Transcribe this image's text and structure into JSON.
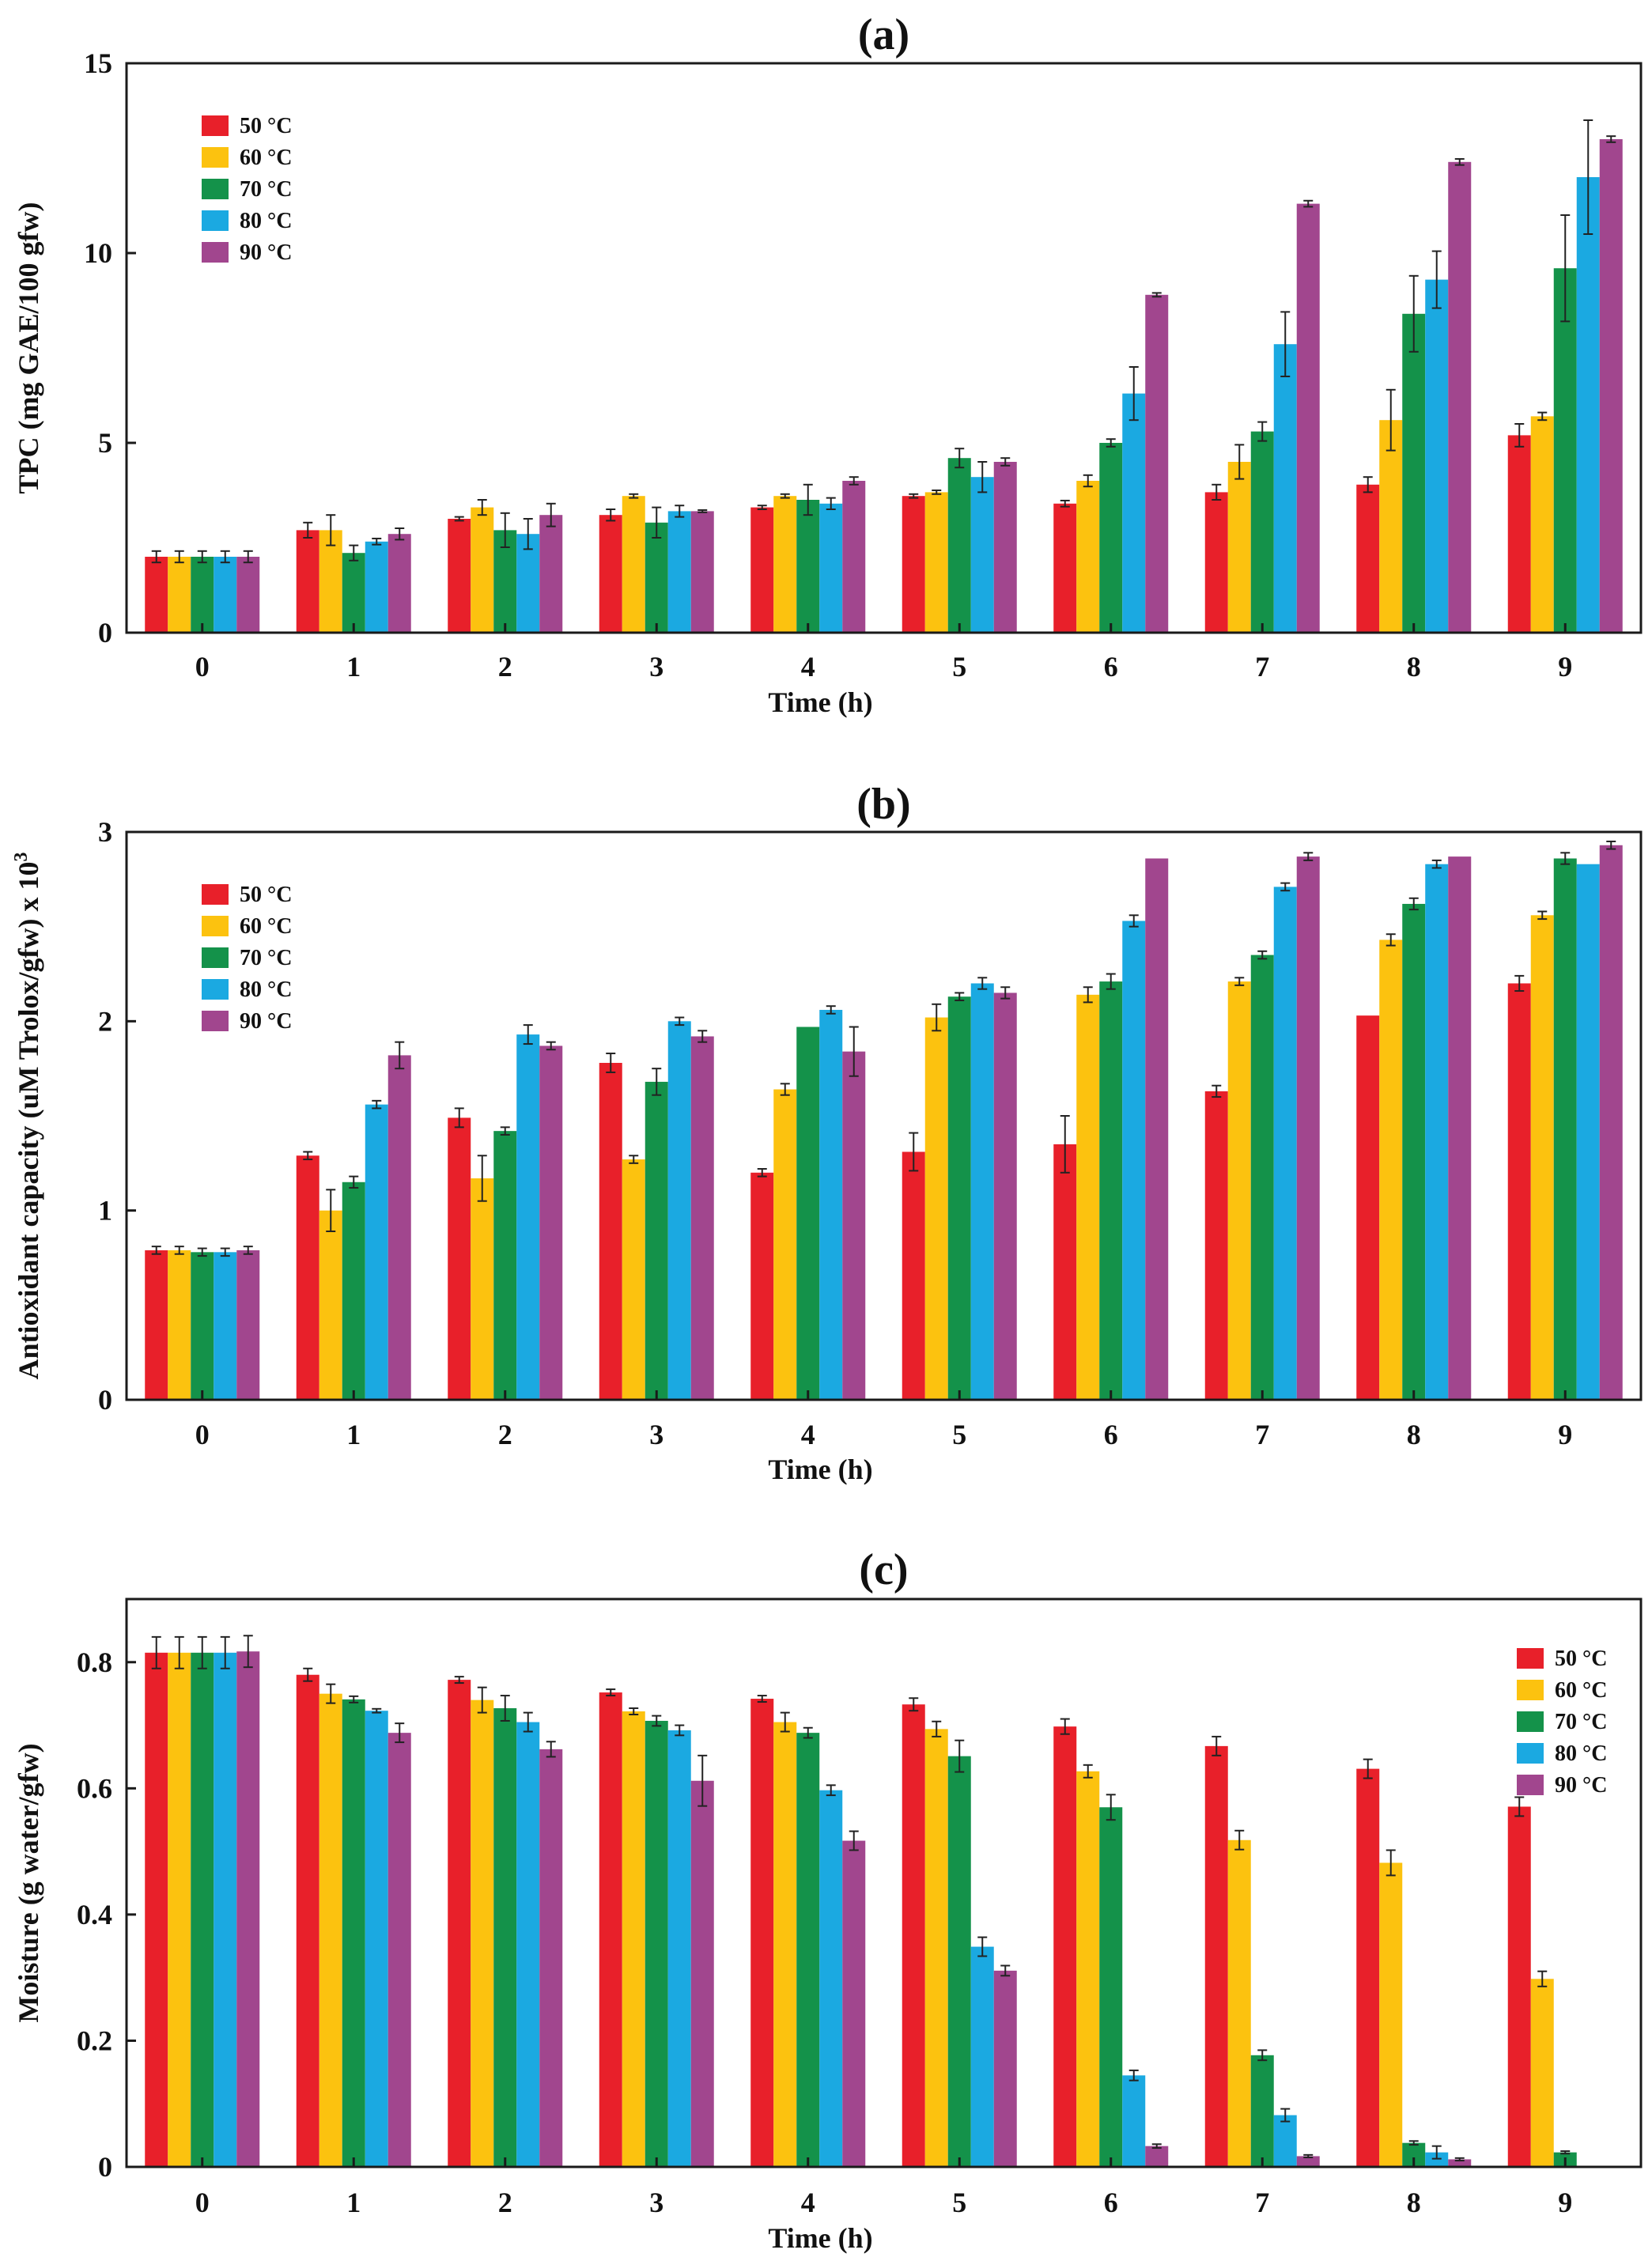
{
  "colors": {
    "50 °C": "#e8202a",
    "60 °C": "#fcc20f",
    "70 °C": "#14924a",
    "80 °C": "#1ba9e1",
    "90 °C": "#a1468e"
  },
  "chart_data": [
    {
      "type": "bar",
      "title": "(a)",
      "xlabel": "Time (h)",
      "ylabel": "TPC (mg GAE/100 gfw)",
      "categories": [
        "0",
        "1",
        "2",
        "3",
        "4",
        "5",
        "6",
        "7",
        "8",
        "9"
      ],
      "ylim": [
        0,
        15
      ],
      "yticks": [
        0,
        5,
        10,
        15
      ],
      "legend_position": "top-left",
      "series": [
        {
          "name": "50 °C",
          "values": [
            2.0,
            2.7,
            3.0,
            3.1,
            3.3,
            3.6,
            3.4,
            3.7,
            3.9,
            5.2
          ],
          "errors": [
            0.15,
            0.2,
            0.05,
            0.15,
            0.05,
            0.05,
            0.08,
            0.2,
            0.2,
            0.3
          ]
        },
        {
          "name": "60 °C",
          "values": [
            2.0,
            2.7,
            3.3,
            3.6,
            3.6,
            3.7,
            4.0,
            4.5,
            5.6,
            5.7
          ],
          "errors": [
            0.15,
            0.4,
            0.2,
            0.05,
            0.05,
            0.05,
            0.15,
            0.45,
            0.8,
            0.1
          ]
        },
        {
          "name": "70 °C",
          "values": [
            2.0,
            2.1,
            2.7,
            2.9,
            3.5,
            4.6,
            5.0,
            5.3,
            8.4,
            9.6
          ]
        },
        {
          "name": "80 °C",
          "values": [
            2.0,
            2.4,
            2.6,
            3.2,
            3.4,
            4.1,
            6.3,
            7.6,
            9.3,
            12.0
          ]
        },
        {
          "name": "90 °C",
          "values": [
            2.0,
            2.6,
            3.1,
            3.2,
            4.0,
            4.5,
            8.9,
            11.3,
            12.4,
            13.0
          ]
        }
      ],
      "errors": [
        [
          0.15,
          0.2,
          0.05,
          0.15,
          0.05,
          0.05,
          0.08,
          0.2,
          0.2,
          0.3
        ],
        [
          0.15,
          0.4,
          0.2,
          0.05,
          0.05,
          0.05,
          0.15,
          0.45,
          0.8,
          0.1
        ],
        [
          0.15,
          0.2,
          0.45,
          0.4,
          0.4,
          0.25,
          0.1,
          0.25,
          1.0,
          1.4
        ],
        [
          0.15,
          0.08,
          0.4,
          0.15,
          0.15,
          0.4,
          0.7,
          0.85,
          0.75,
          1.5
        ],
        [
          0.15,
          0.15,
          0.3,
          0.03,
          0.1,
          0.1,
          0.05,
          0.08,
          0.08,
          0.08
        ]
      ]
    },
    {
      "type": "bar",
      "title": "(b)",
      "xlabel": "Time (h)",
      "ylabel": "Antioxidant capacity (uM Trolox/gfw) x 10",
      "ylabel_superscript": "3",
      "categories": [
        "0",
        "1",
        "2",
        "3",
        "4",
        "5",
        "6",
        "7",
        "8",
        "9"
      ],
      "ylim": [
        0,
        3
      ],
      "yticks": [
        0,
        1,
        2,
        3
      ],
      "legend_position": "top-left",
      "series": [
        {
          "name": "50 °C",
          "values": [
            0.79,
            1.29,
            1.49,
            1.78,
            1.2,
            1.31,
            1.35,
            1.63,
            2.03,
            2.2
          ]
        },
        {
          "name": "60 °C",
          "values": [
            0.79,
            1.0,
            1.17,
            1.27,
            1.64,
            2.02,
            2.14,
            2.21,
            2.43,
            2.56
          ]
        },
        {
          "name": "70 °C",
          "values": [
            0.78,
            1.15,
            1.42,
            1.68,
            1.97,
            2.13,
            2.21,
            2.35,
            2.62,
            2.86
          ]
        },
        {
          "name": "80 °C",
          "values": [
            0.78,
            1.56,
            1.93,
            2.0,
            2.06,
            2.2,
            2.53,
            2.71,
            2.83,
            2.83
          ]
        },
        {
          "name": "90 °C",
          "values": [
            0.79,
            1.82,
            1.87,
            1.92,
            1.84,
            2.15,
            2.86,
            2.87,
            2.87,
            2.93
          ]
        }
      ],
      "errors": [
        [
          0.02,
          0.02,
          0.05,
          0.05,
          0.02,
          0.1,
          0.15,
          0.03,
          0.0,
          0.04
        ],
        [
          0.02,
          0.11,
          0.12,
          0.02,
          0.03,
          0.07,
          0.04,
          0.02,
          0.03,
          0.02
        ],
        [
          0.02,
          0.03,
          0.02,
          0.07,
          0.0,
          0.02,
          0.04,
          0.02,
          0.03,
          0.03
        ],
        [
          0.02,
          0.02,
          0.05,
          0.02,
          0.02,
          0.03,
          0.03,
          0.02,
          0.02,
          0.0
        ],
        [
          0.02,
          0.07,
          0.02,
          0.03,
          0.13,
          0.03,
          0.0,
          0.02,
          0.0,
          0.02
        ]
      ]
    },
    {
      "type": "bar",
      "title": "(c)",
      "xlabel": "Time (h)",
      "ylabel": "Moisture (g water/gfw)",
      "categories": [
        "0",
        "1",
        "2",
        "3",
        "4",
        "5",
        "6",
        "7",
        "8",
        "9"
      ],
      "ylim": [
        0,
        0.9
      ],
      "yticks": [
        0,
        0.2,
        0.4,
        0.6,
        0.8
      ],
      "legend_position": "top-right",
      "series": [
        {
          "name": "50 °C",
          "values": [
            0.815,
            0.78,
            0.772,
            0.752,
            0.742,
            0.733,
            0.698,
            0.667,
            0.631,
            0.571
          ]
        },
        {
          "name": "60 °C",
          "values": [
            0.815,
            0.75,
            0.74,
            0.722,
            0.705,
            0.694,
            0.627,
            0.518,
            0.482,
            0.298
          ]
        },
        {
          "name": "70 °C",
          "values": [
            0.815,
            0.741,
            0.727,
            0.707,
            0.688,
            0.651,
            0.57,
            0.177,
            0.038,
            0.023
          ]
        },
        {
          "name": "80 °C",
          "values": [
            0.815,
            0.723,
            0.705,
            0.692,
            0.597,
            0.349,
            0.145,
            0.082,
            0.023,
            0.0
          ]
        },
        {
          "name": "90 °C",
          "values": [
            0.817,
            0.688,
            0.662,
            0.612,
            0.517,
            0.311,
            0.033,
            0.017,
            0.012,
            0.0
          ]
        }
      ],
      "errors": [
        [
          0.025,
          0.01,
          0.005,
          0.005,
          0.005,
          0.01,
          0.012,
          0.015,
          0.015,
          0.015
        ],
        [
          0.025,
          0.015,
          0.02,
          0.005,
          0.015,
          0.012,
          0.01,
          0.015,
          0.02,
          0.012
        ],
        [
          0.025,
          0.005,
          0.02,
          0.008,
          0.008,
          0.025,
          0.02,
          0.008,
          0.003,
          0.002
        ],
        [
          0.025,
          0.003,
          0.015,
          0.008,
          0.008,
          0.015,
          0.008,
          0.01,
          0.01,
          0.0
        ],
        [
          0.025,
          0.015,
          0.012,
          0.04,
          0.015,
          0.008,
          0.003,
          0.002,
          0.002,
          0.0
        ]
      ]
    }
  ]
}
